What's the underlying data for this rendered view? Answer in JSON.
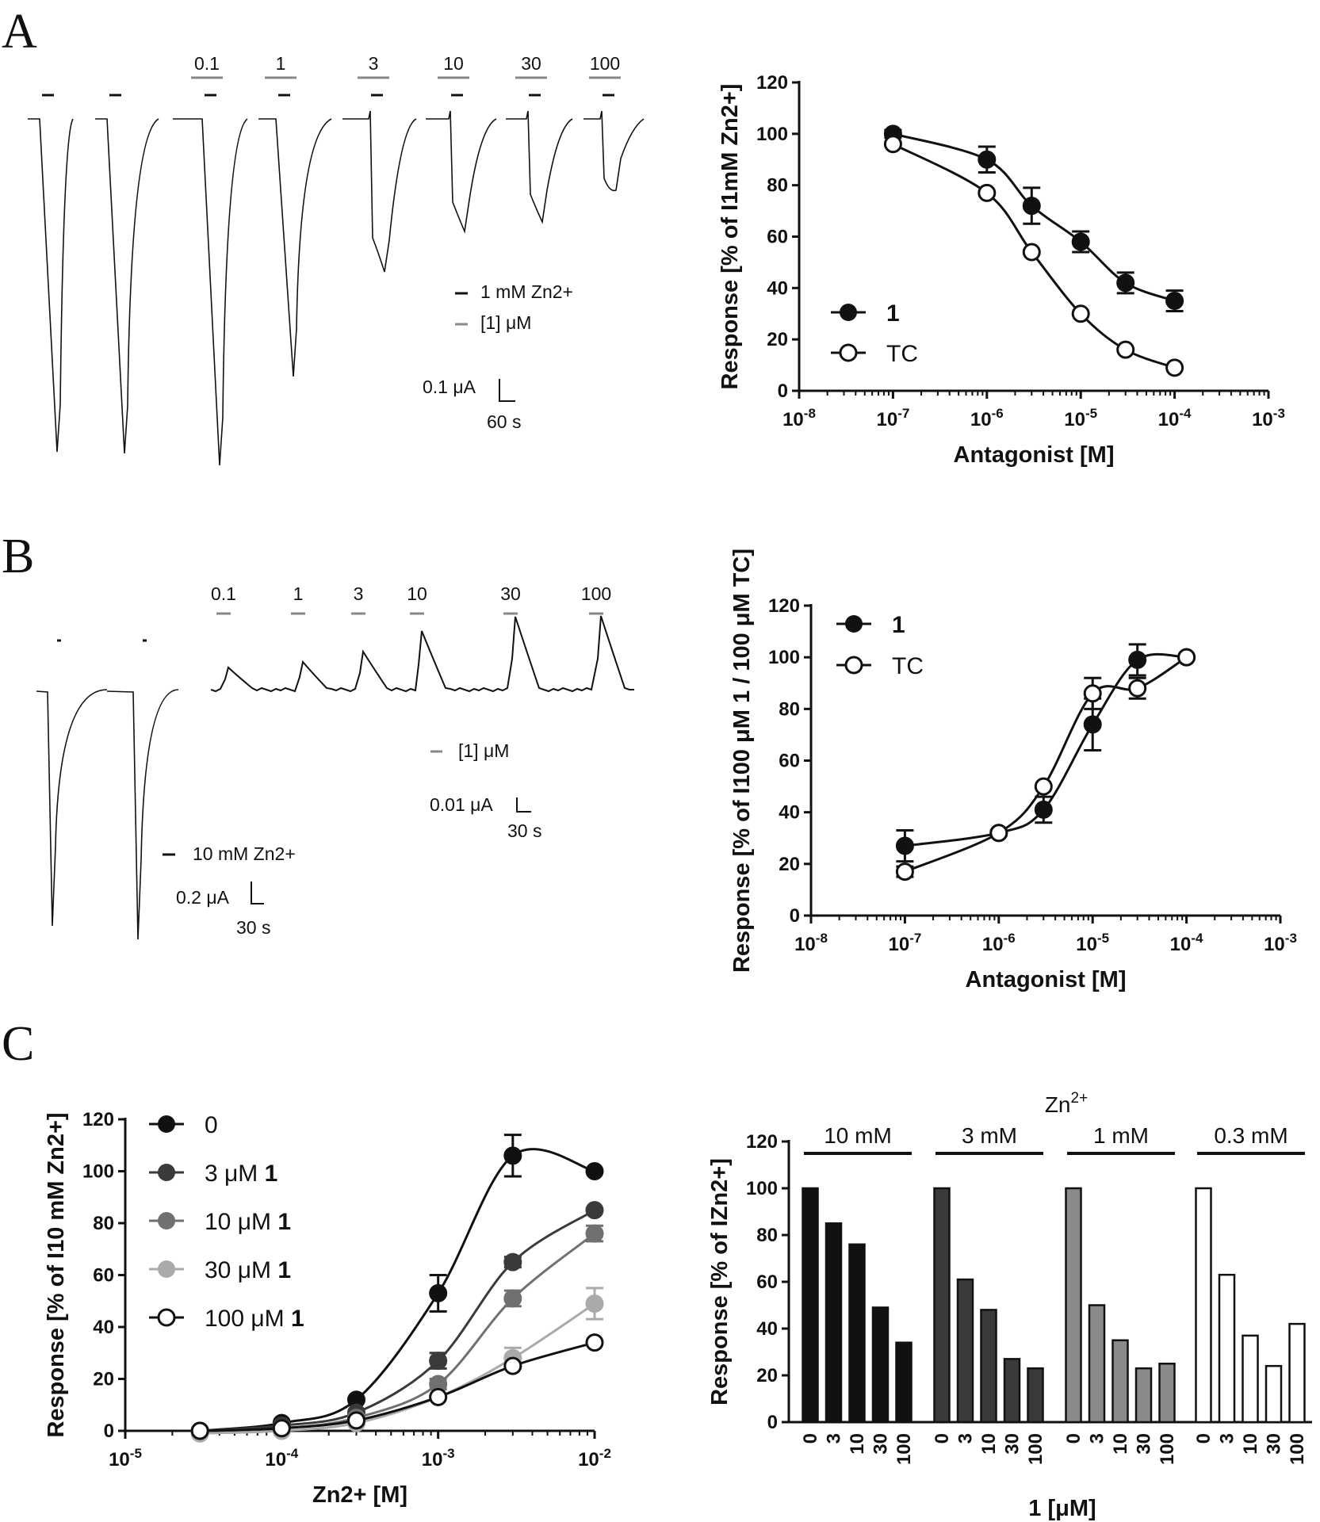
{
  "panels": [
    {
      "letter": "A"
    },
    {
      "letter": "B"
    },
    {
      "letter": "C"
    }
  ],
  "traceA": {
    "bars": [
      "0.1",
      "1",
      "3",
      "10",
      "30",
      "100"
    ],
    "legend": [
      "1 mM Zn2+",
      "[1] μM"
    ],
    "scale": {
      "current": "0.1 μA",
      "time": "60 s"
    },
    "colors": {
      "zn": "#111111",
      "antagonist": "#888888"
    }
  },
  "traceB": {
    "bars": [
      "0.1",
      "1",
      "3",
      "10",
      "30",
      "100"
    ],
    "legend_antagonist": "[1] μM",
    "scale_right": {
      "current": "0.01 μA",
      "time": "30 s"
    },
    "legend_zn": "10 mM Zn2+",
    "scale_left": {
      "current": "0.2 μA",
      "time": "30 s"
    }
  },
  "chart_data": [
    {
      "id": "A",
      "type": "line",
      "xscale": "log",
      "xlim_exp": [
        -8,
        -3
      ],
      "ylim": [
        0,
        120
      ],
      "yticks": [
        0,
        20,
        40,
        60,
        80,
        100,
        120
      ],
      "xticks": [
        "10-8",
        "10-7",
        "10-6",
        "10-5",
        "10-4",
        "10-3"
      ],
      "xlabel": "Antagonist [M]",
      "ylabel": "Response [% of I1mM Zn2+]",
      "legend_placement": "bottom-left",
      "series": [
        {
          "name": "1",
          "marker": "filled",
          "x": [
            1e-07,
            1e-06,
            3e-06,
            1e-05,
            3e-05,
            0.0001
          ],
          "y": [
            100,
            90,
            72,
            58,
            42,
            35
          ],
          "err": [
            1.5,
            5,
            7,
            4,
            4,
            4
          ]
        },
        {
          "name": "TC",
          "marker": "open",
          "x": [
            1e-07,
            1e-06,
            3e-06,
            1e-05,
            3e-05,
            0.0001
          ],
          "y": [
            96,
            77,
            54,
            30,
            16,
            9
          ],
          "err": [
            0,
            0,
            0,
            0,
            0,
            0
          ]
        }
      ]
    },
    {
      "id": "B",
      "type": "line",
      "xscale": "log",
      "xlim_exp": [
        -8,
        -3
      ],
      "ylim": [
        0,
        120
      ],
      "yticks": [
        0,
        20,
        40,
        60,
        80,
        100,
        120
      ],
      "xticks": [
        "10-8",
        "10-7",
        "10-6",
        "10-5",
        "10-4",
        "10-3"
      ],
      "xlabel": "Antagonist [M]",
      "ylabel": "Response [% of I100 μM 1 / 100 μM TC]",
      "legend_placement": "top-left",
      "series": [
        {
          "name": "1",
          "marker": "filled",
          "x": [
            1e-07,
            1e-06,
            3e-06,
            1e-05,
            3e-05,
            0.0001
          ],
          "y": [
            27,
            32,
            41,
            74,
            99,
            100
          ],
          "err": [
            6,
            1,
            5,
            10,
            6,
            0
          ]
        },
        {
          "name": "TC",
          "marker": "open",
          "x": [
            1e-07,
            1e-06,
            3e-06,
            1e-05,
            3e-05,
            0.0001
          ],
          "y": [
            17,
            32,
            50,
            86,
            88,
            100
          ],
          "err": [
            2,
            0,
            0,
            6,
            4,
            0
          ]
        }
      ]
    },
    {
      "id": "C-left",
      "type": "line",
      "xscale": "log",
      "xlim_exp": [
        -5,
        -2
      ],
      "ylim": [
        0,
        120
      ],
      "yticks": [
        0,
        20,
        40,
        60,
        80,
        100,
        120
      ],
      "xticks": [
        "10-5",
        "10-4",
        "10-3",
        "10-2"
      ],
      "xlabel": "Zn2+ [M]",
      "ylabel": "Response [% of I10 mM Zn2+]",
      "legend_placement": "top-left",
      "series": [
        {
          "name": "0",
          "marker": "filled",
          "color": "#111111",
          "x": [
            3e-05,
            0.0001,
            0.0003,
            0.001,
            0.003,
            0.01
          ],
          "y": [
            0,
            3,
            12,
            53,
            106,
            100
          ],
          "err": [
            0,
            0,
            0,
            7,
            8,
            0
          ]
        },
        {
          "name": "3 μM 1",
          "marker": "filled",
          "color": "#3a3a3a",
          "x": [
            3e-05,
            0.0001,
            0.0003,
            0.001,
            0.003,
            0.01
          ],
          "y": [
            0,
            2,
            7,
            27,
            65,
            85
          ],
          "err": [
            0,
            0,
            0,
            3,
            2,
            0
          ]
        },
        {
          "name": "10 μM 1",
          "marker": "filled",
          "color": "#707070",
          "x": [
            3e-05,
            0.0001,
            0.0003,
            0.001,
            0.003,
            0.01
          ],
          "y": [
            0,
            1,
            5,
            18,
            51,
            76
          ],
          "err": [
            0,
            0,
            0,
            2,
            3,
            3
          ]
        },
        {
          "name": "30 μM 1",
          "marker": "filled",
          "color": "#aaaaaa",
          "x": [
            3e-05,
            0.0001,
            0.0003,
            0.001,
            0.003,
            0.01
          ],
          "y": [
            -1,
            0,
            3,
            13,
            28,
            49
          ],
          "err": [
            0,
            0,
            0,
            0,
            4,
            6
          ]
        },
        {
          "name": "100 μM 1",
          "marker": "open",
          "color": "#111111",
          "x": [
            3e-05,
            0.0001,
            0.0003,
            0.001,
            0.003,
            0.01
          ],
          "y": [
            0,
            1,
            4,
            13,
            25,
            34
          ],
          "err": [
            0,
            0,
            0,
            0,
            0,
            0
          ]
        }
      ],
      "legend_prefix": [
        "0",
        "3 μM ",
        "10 μM ",
        "30 μM ",
        "100 μM "
      ],
      "legend_bold": [
        "",
        "1",
        "1",
        "1",
        "1"
      ]
    },
    {
      "id": "C-right",
      "type": "bar",
      "title": "Zn2+",
      "ylim": [
        0,
        120
      ],
      "yticks": [
        0,
        20,
        40,
        60,
        80,
        100,
        120
      ],
      "xlabel": "1 [μM]",
      "ylabel": "Response [% of IZn2+]",
      "groups": [
        {
          "name": "10 mM",
          "color": "#111111",
          "categories": [
            "0",
            "3",
            "10",
            "30",
            "100"
          ],
          "values": [
            100,
            85,
            76,
            49,
            34
          ]
        },
        {
          "name": "3 mM",
          "color": "#3a3a3a",
          "categories": [
            "0",
            "3",
            "10",
            "30",
            "100"
          ],
          "values": [
            100,
            61,
            48,
            27,
            23
          ]
        },
        {
          "name": "1 mM",
          "color": "#8a8a8a",
          "categories": [
            "0",
            "3",
            "10",
            "30",
            "100"
          ],
          "values": [
            100,
            50,
            35,
            23,
            25
          ]
        },
        {
          "name": "0.3 mM",
          "color": "#ffffff",
          "categories": [
            "0",
            "3",
            "10",
            "30",
            "100"
          ],
          "values": [
            100,
            63,
            37,
            24,
            42
          ]
        }
      ]
    }
  ]
}
